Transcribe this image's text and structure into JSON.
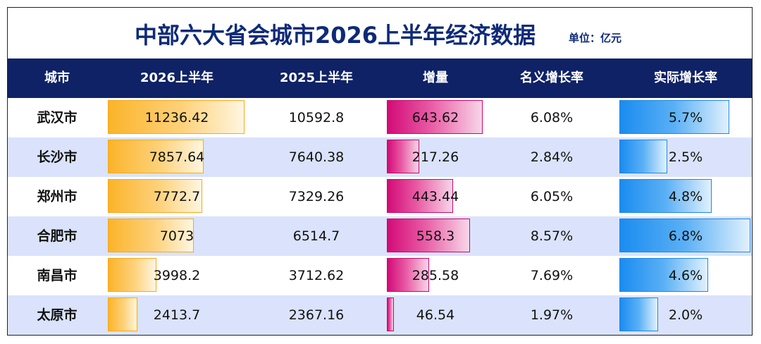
{
  "title": "中部六大省会城市2026上半年经济数据",
  "unit": "单位：亿元",
  "colors": {
    "header_bg": "#0f2266",
    "title": "#0e2a78",
    "row_alt": "#dae3fb",
    "gdp_bar": "#fbb42a",
    "increment_bar": "#d30b78",
    "real_growth_bar": "#1a8cf0"
  },
  "chart_data": {
    "type": "table",
    "columns": [
      "城市",
      "2026上半年",
      "2025上半年",
      "增量",
      "名义增长率",
      "实际增长率"
    ],
    "rows": [
      {
        "city": "武汉市",
        "gdp_2026": "11236.42",
        "gdp_2025": "10592.8",
        "increment": "643.62",
        "nominal": "6.08%",
        "real": "5.7%",
        "gdp_2026_value": 11236.42,
        "increment_value": 643.62,
        "real_value": 5.7
      },
      {
        "city": "长沙市",
        "gdp_2026": "7857.64",
        "gdp_2025": "7640.38",
        "increment": "217.26",
        "nominal": "2.84%",
        "real": "2.5%",
        "gdp_2026_value": 7857.64,
        "increment_value": 217.26,
        "real_value": 2.5
      },
      {
        "city": "郑州市",
        "gdp_2026": "7772.7",
        "gdp_2025": "7329.26",
        "increment": "443.44",
        "nominal": "6.05%",
        "real": "4.8%",
        "gdp_2026_value": 7772.7,
        "increment_value": 443.44,
        "real_value": 4.8
      },
      {
        "city": "合肥市",
        "gdp_2026": "7073",
        "gdp_2025": "6514.7",
        "increment": "558.3",
        "nominal": "8.57%",
        "real": "6.8%",
        "gdp_2026_value": 7073,
        "increment_value": 558.3,
        "real_value": 6.8
      },
      {
        "city": "南昌市",
        "gdp_2026": "3998.2",
        "gdp_2025": "3712.62",
        "increment": "285.58",
        "nominal": "7.69%",
        "real": "4.6%",
        "gdp_2026_value": 3998.2,
        "increment_value": 285.58,
        "real_value": 4.6
      },
      {
        "city": "太原市",
        "gdp_2026": "2413.7",
        "gdp_2025": "2367.16",
        "increment": "46.54",
        "nominal": "1.97%",
        "real": "2.0%",
        "gdp_2026_value": 2413.7,
        "increment_value": 46.54,
        "real_value": 2.0
      }
    ],
    "bar_max": {
      "gdp_2026": 11236.42,
      "increment": 643.62,
      "real": 6.8
    }
  }
}
